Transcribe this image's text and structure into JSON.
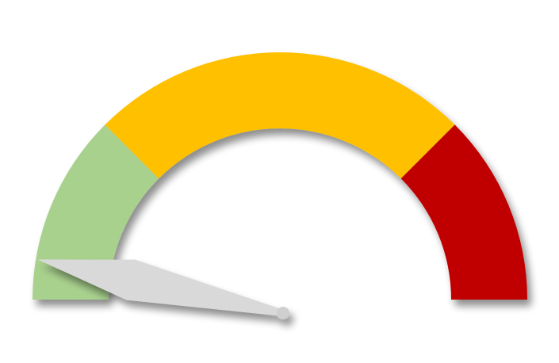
{
  "gauge": {
    "min": 0,
    "max": 100,
    "value": 4,
    "bands": [
      {
        "name": "green-zone",
        "from": 0,
        "to": 25,
        "color": "#a9d18e"
      },
      {
        "name": "yellow-zone",
        "from": 25,
        "to": 75,
        "color": "#ffc000"
      },
      {
        "name": "red-zone",
        "from": 75,
        "to": 100,
        "color": "#c00000"
      }
    ],
    "needle_color": "#d9d9d9",
    "needle_cap_color": "#cfcfcf"
  }
}
